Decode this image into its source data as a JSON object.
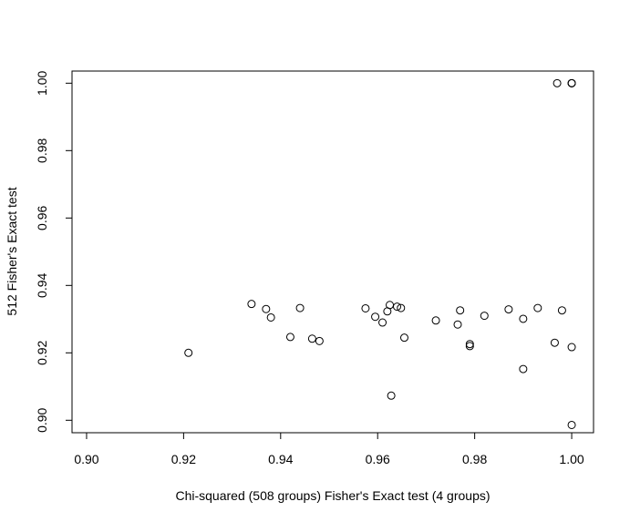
{
  "chart_data": {
    "type": "scatter",
    "title": "",
    "xlabel": "Chi-squared (508 groups) Fisher's Exact test (4 groups)",
    "ylabel": "512 Fisher's Exact test",
    "xlim": [
      0.897,
      1.0045
    ],
    "ylim": [
      0.8963,
      1.0036
    ],
    "x_ticks": [
      0.9,
      0.92,
      0.94,
      0.96,
      0.98,
      1.0
    ],
    "x_tick_labels": [
      "0.90",
      "0.92",
      "0.94",
      "0.96",
      "0.98",
      "1.00"
    ],
    "y_ticks": [
      0.9,
      0.92,
      0.94,
      0.96,
      0.98,
      1.0
    ],
    "y_tick_labels": [
      "0.90",
      "0.92",
      "0.94",
      "0.96",
      "0.98",
      "1.00"
    ],
    "grid": false,
    "marker": "open-circle",
    "points": [
      {
        "x": 0.921,
        "y": 0.92
      },
      {
        "x": 0.934,
        "y": 0.9345
      },
      {
        "x": 0.937,
        "y": 0.933
      },
      {
        "x": 0.938,
        "y": 0.9305
      },
      {
        "x": 0.942,
        "y": 0.9247
      },
      {
        "x": 0.944,
        "y": 0.9333
      },
      {
        "x": 0.9465,
        "y": 0.9242
      },
      {
        "x": 0.948,
        "y": 0.9235
      },
      {
        "x": 0.9575,
        "y": 0.9332
      },
      {
        "x": 0.9595,
        "y": 0.9307
      },
      {
        "x": 0.961,
        "y": 0.929
      },
      {
        "x": 0.962,
        "y": 0.9323
      },
      {
        "x": 0.9625,
        "y": 0.9342
      },
      {
        "x": 0.9628,
        "y": 0.9073
      },
      {
        "x": 0.964,
        "y": 0.9337
      },
      {
        "x": 0.9648,
        "y": 0.9333
      },
      {
        "x": 0.9655,
        "y": 0.9245
      },
      {
        "x": 0.972,
        "y": 0.9296
      },
      {
        "x": 0.9765,
        "y": 0.9284
      },
      {
        "x": 0.977,
        "y": 0.9326
      },
      {
        "x": 0.979,
        "y": 0.9226
      },
      {
        "x": 0.979,
        "y": 0.922
      },
      {
        "x": 0.982,
        "y": 0.931
      },
      {
        "x": 0.987,
        "y": 0.9329
      },
      {
        "x": 0.99,
        "y": 0.9301
      },
      {
        "x": 0.99,
        "y": 0.9152
      },
      {
        "x": 0.993,
        "y": 0.9333
      },
      {
        "x": 0.9965,
        "y": 0.923
      },
      {
        "x": 0.997,
        "y": 1.0
      },
      {
        "x": 0.998,
        "y": 0.9326
      },
      {
        "x": 1.0,
        "y": 0.9217
      },
      {
        "x": 1.0,
        "y": 0.8986
      },
      {
        "x": 1.0,
        "y": 1.0
      },
      {
        "x": 1.0,
        "y": 1.0
      },
      {
        "x": 1.0,
        "y": 1.0
      }
    ]
  }
}
